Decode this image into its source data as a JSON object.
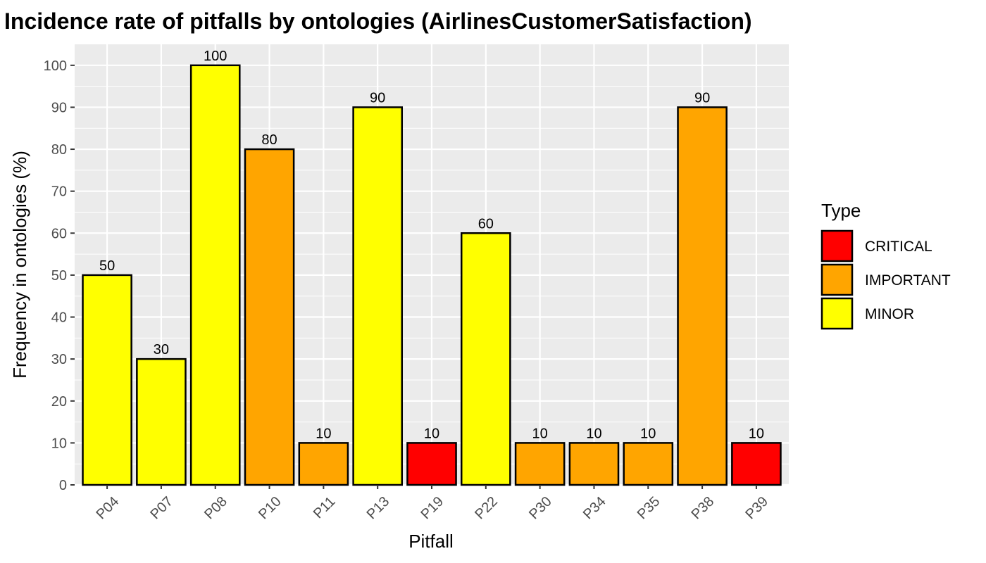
{
  "chart_data": {
    "type": "bar",
    "title": "Incidence rate of pitfalls by ontologies (AirlinesCustomerSatisfaction)",
    "xlabel": "Pitfall",
    "ylabel": "Frequency in ontologies (%)",
    "ylim": [
      0,
      105
    ],
    "yticks": [
      0,
      10,
      20,
      30,
      40,
      50,
      60,
      70,
      80,
      90,
      100
    ],
    "grid": true,
    "legend_position": "right",
    "legend_title": "Type",
    "legend": [
      {
        "label": "CRITICAL",
        "color": "#ff0000"
      },
      {
        "label": "IMPORTANT",
        "color": "#ffa500"
      },
      {
        "label": "MINOR",
        "color": "#ffff00"
      }
    ],
    "categories": [
      "P04",
      "P07",
      "P08",
      "P10",
      "P11",
      "P13",
      "P19",
      "P22",
      "P30",
      "P34",
      "P35",
      "P38",
      "P39"
    ],
    "values": [
      50,
      30,
      100,
      80,
      10,
      90,
      10,
      60,
      10,
      10,
      10,
      90,
      10
    ],
    "types": [
      "MINOR",
      "MINOR",
      "MINOR",
      "IMPORTANT",
      "IMPORTANT",
      "MINOR",
      "CRITICAL",
      "MINOR",
      "IMPORTANT",
      "IMPORTANT",
      "IMPORTANT",
      "IMPORTANT",
      "CRITICAL"
    ],
    "data_labels": [
      "50",
      "30",
      "100",
      "80",
      "10",
      "90",
      "10",
      "60",
      "10",
      "10",
      "10",
      "90",
      "10"
    ]
  }
}
